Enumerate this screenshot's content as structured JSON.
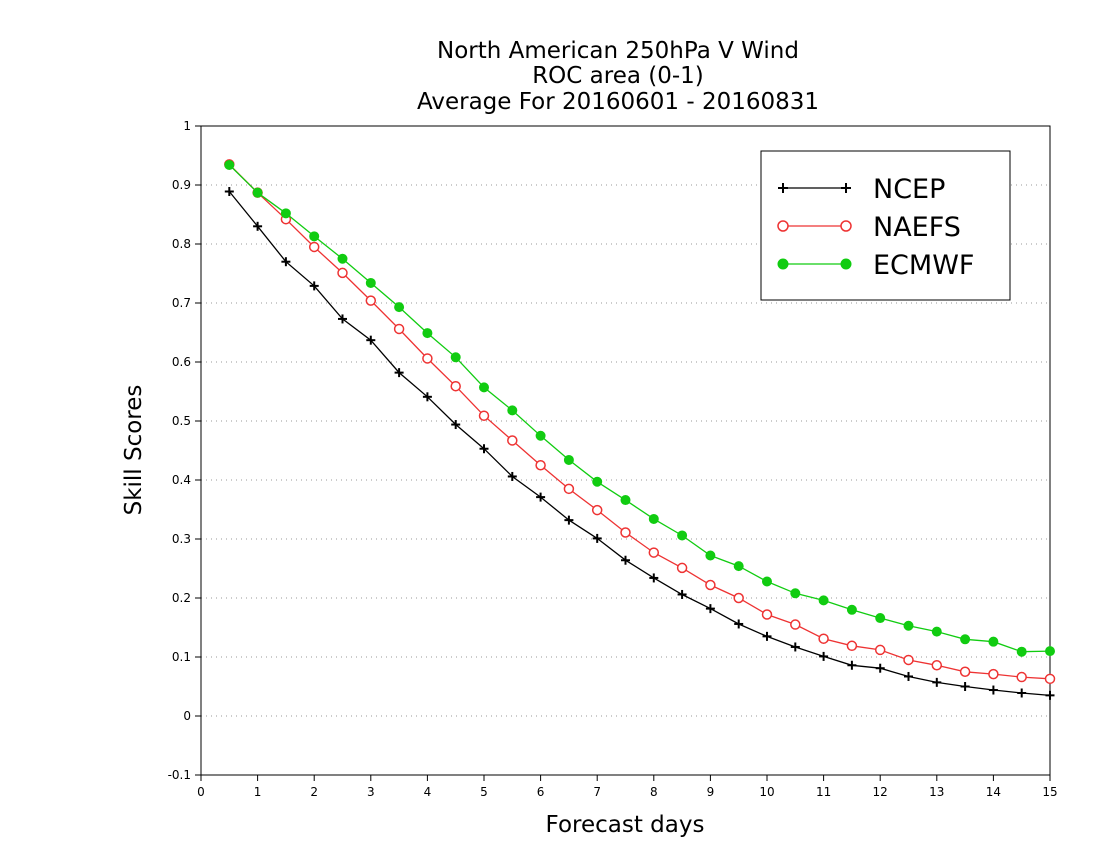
{
  "chart_data": {
    "type": "line",
    "title": [
      "North American 250hPa V Wind",
      "ROC area (0-1)",
      "Average For 20160601 - 20160831"
    ],
    "xlabel": "Forecast days",
    "ylabel": "Skill Scores",
    "xlim": [
      0,
      15
    ],
    "ylim": [
      -0.1,
      1
    ],
    "xticks": [
      0,
      1,
      2,
      3,
      4,
      5,
      6,
      7,
      8,
      9,
      10,
      11,
      12,
      13,
      14,
      15
    ],
    "yticks": [
      -0.1,
      0,
      0.1,
      0.2,
      0.3,
      0.4,
      0.5,
      0.6,
      0.7,
      0.8,
      0.9,
      1
    ],
    "ytick_labels": [
      "-0.1",
      "0",
      "0.1",
      "0.2",
      "0.3",
      "0.4",
      "0.5",
      "0.6",
      "0.7",
      "0.8",
      "0.9",
      "1"
    ],
    "grid": "horizontal dotted",
    "legend_position": "top-right",
    "x": [
      0.5,
      1,
      1.5,
      2,
      2.5,
      3,
      3.5,
      4,
      4.5,
      5,
      5.5,
      6,
      6.5,
      7,
      7.5,
      8,
      8.5,
      9,
      9.5,
      10,
      10.5,
      11,
      11.5,
      12,
      12.5,
      13,
      13.5,
      14,
      14.5,
      15
    ],
    "series": [
      {
        "name": "NCEP",
        "color": "#000000",
        "marker": "plus",
        "values": [
          0.889,
          0.83,
          0.77,
          0.729,
          0.673,
          0.637,
          0.582,
          0.541,
          0.494,
          0.453,
          0.406,
          0.371,
          0.332,
          0.301,
          0.264,
          0.234,
          0.206,
          0.182,
          0.156,
          0.135,
          0.117,
          0.101,
          0.086,
          0.081,
          0.067,
          0.057,
          0.05,
          0.044,
          0.039,
          0.035
        ]
      },
      {
        "name": "NAEFS",
        "color": "#ee3333",
        "marker": "open-circle",
        "values": [
          0.935,
          0.887,
          0.842,
          0.795,
          0.751,
          0.704,
          0.656,
          0.606,
          0.559,
          0.509,
          0.467,
          0.425,
          0.385,
          0.349,
          0.311,
          0.277,
          0.251,
          0.222,
          0.2,
          0.172,
          0.155,
          0.131,
          0.119,
          0.112,
          0.095,
          0.086,
          0.075,
          0.071,
          0.066,
          0.063
        ]
      },
      {
        "name": "ECMWF",
        "color": "#11cc11",
        "marker": "filled-circle",
        "values": [
          0.934,
          0.887,
          0.852,
          0.813,
          0.775,
          0.734,
          0.693,
          0.649,
          0.608,
          0.557,
          0.518,
          0.475,
          0.434,
          0.397,
          0.366,
          0.334,
          0.306,
          0.272,
          0.254,
          0.228,
          0.208,
          0.196,
          0.18,
          0.166,
          0.153,
          0.143,
          0.13,
          0.126,
          0.109,
          0.11
        ]
      }
    ]
  }
}
